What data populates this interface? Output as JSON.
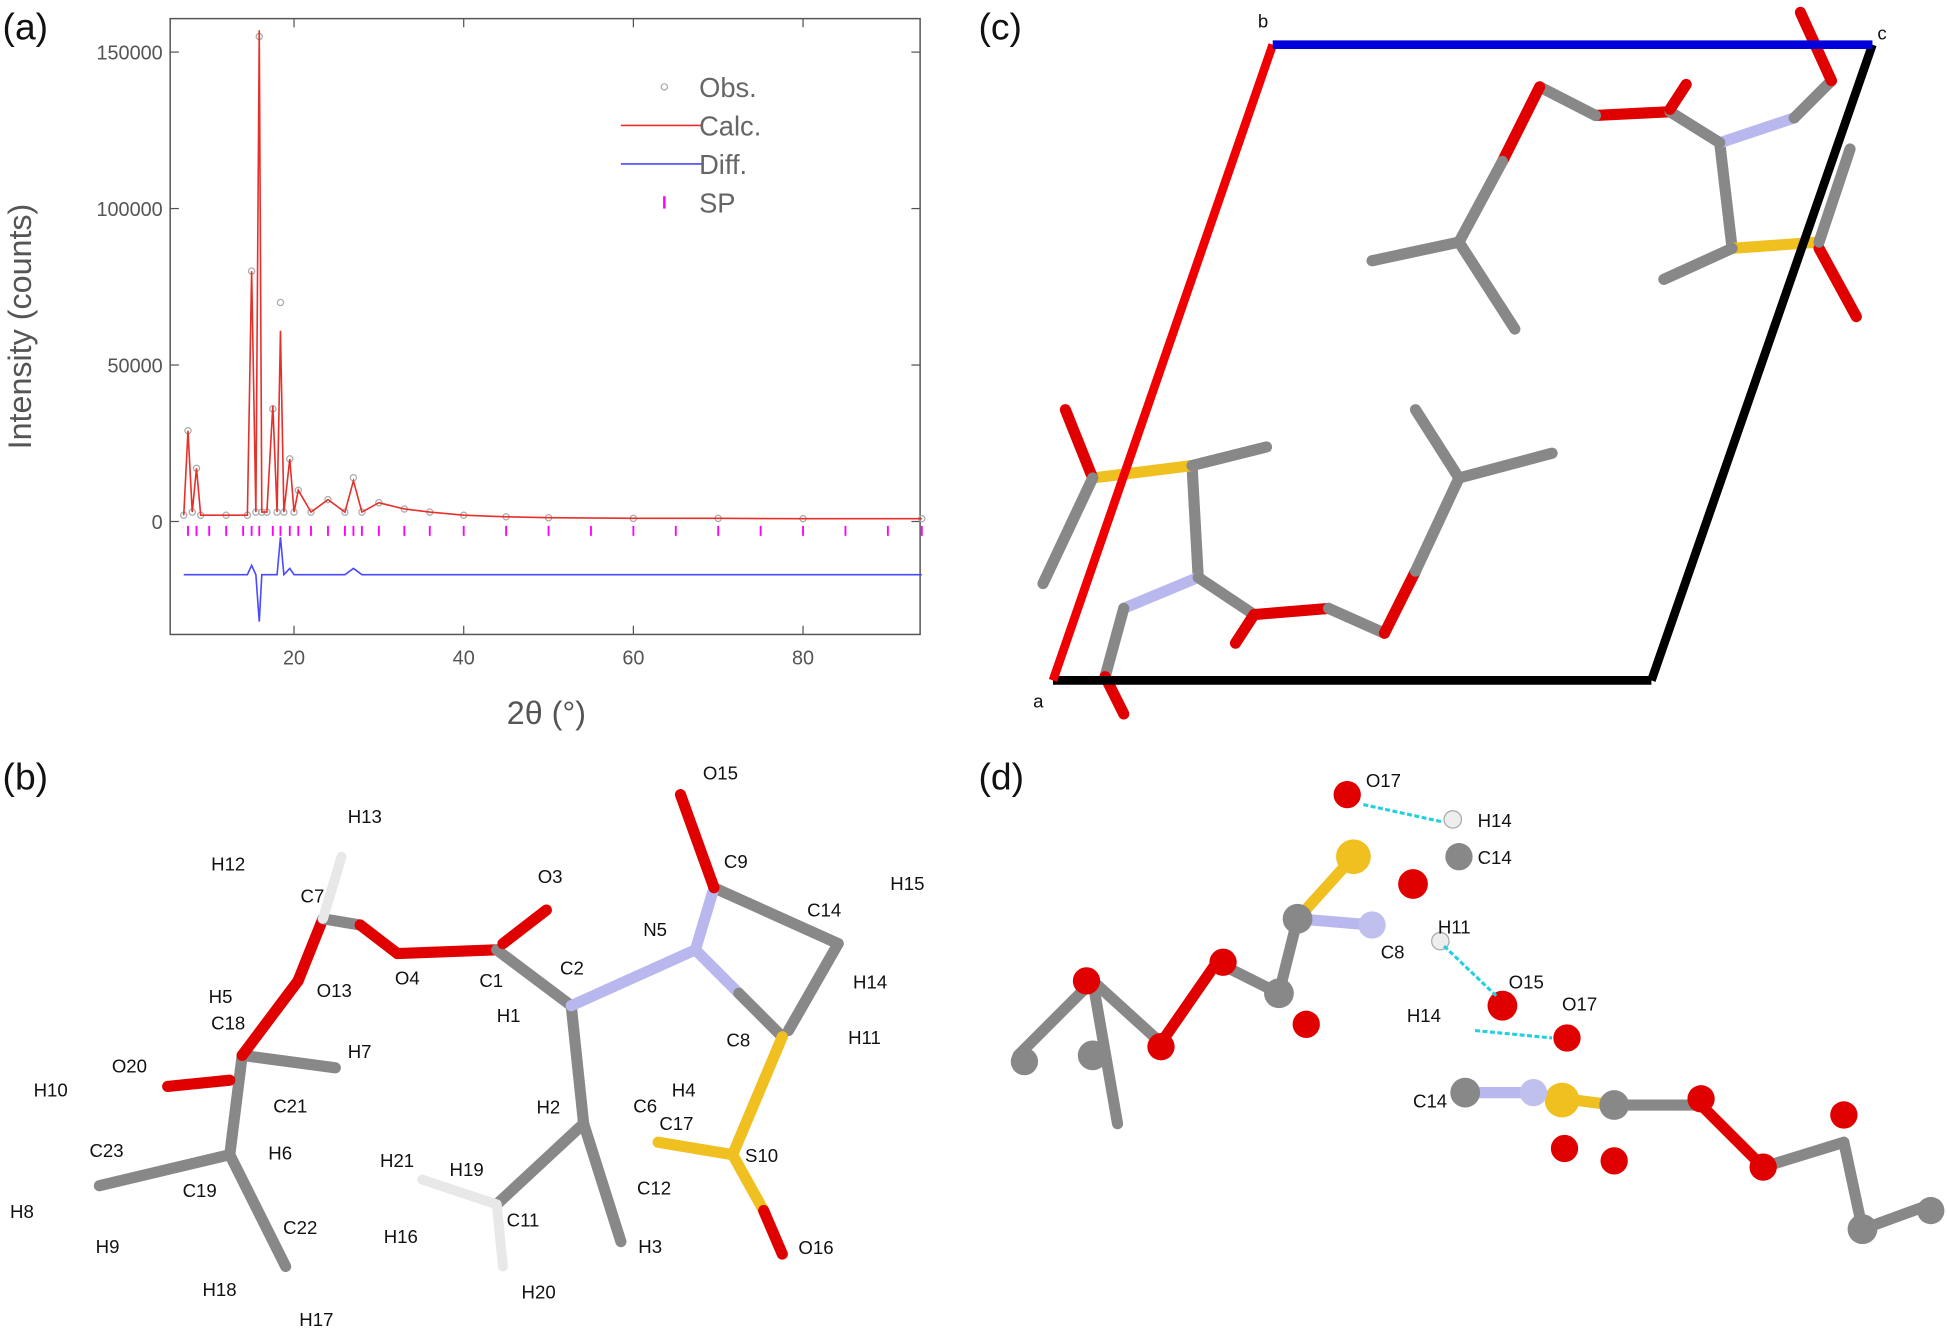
{
  "chart_data": {
    "type": "line",
    "panel_label": "(a)",
    "y_label": "Intensity (counts)",
    "x_label": "2θ (°)",
    "x": [
      7,
      7.5,
      8,
      8.5,
      9,
      12,
      14.5,
      15,
      15.5,
      15.9,
      16.2,
      16.8,
      17.5,
      18,
      18.4,
      18.8,
      19.5,
      20,
      20.5,
      22,
      24,
      26,
      27,
      28,
      30,
      33,
      36,
      40,
      45,
      50,
      60,
      70,
      80,
      94
    ],
    "series": [
      {
        "name": "Obs.",
        "color": "#aaaaaa",
        "values": [
          2000,
          29000,
          3000,
          17000,
          2000,
          2000,
          2000,
          80000,
          3000,
          155000,
          3000,
          3000,
          36000,
          3000,
          70000,
          3000,
          20000,
          3000,
          10000,
          3000,
          7000,
          3000,
          14000,
          3000,
          6000,
          4000,
          3000,
          2000,
          1500,
          1200,
          1000,
          1000,
          900,
          900
        ]
      },
      {
        "name": "Calc.",
        "color": "#e8302a",
        "values": [
          2000,
          29000,
          3000,
          17000,
          2000,
          2000,
          2000,
          80000,
          3000,
          157000,
          3000,
          3000,
          37000,
          3000,
          61000,
          3000,
          20000,
          3000,
          10000,
          3000,
          7000,
          3000,
          13000,
          3000,
          6000,
          4000,
          3000,
          2000,
          1500,
          1200,
          1000,
          1000,
          900,
          900
        ]
      },
      {
        "name": "Diff.",
        "color": "#4a4aff",
        "values": [
          -17000,
          -17000,
          -17000,
          -17000,
          -17000,
          -17000,
          -17000,
          -14000,
          -17000,
          -32000,
          -17000,
          -17000,
          -17000,
          -17000,
          -5000,
          -17000,
          -15000,
          -17000,
          -17000,
          -17000,
          -17000,
          -17000,
          -15000,
          -17000,
          -17000,
          -17000,
          -17000,
          -17000,
          -17000,
          -17000,
          -17000,
          -17000,
          -17000,
          -17000
        ]
      },
      {
        "name": "SP",
        "color": "#ff00ff",
        "x": [
          7.5,
          8.5,
          10,
          12,
          14,
          15,
          15.9,
          17.5,
          18.4,
          19.5,
          20.5,
          22,
          24,
          26,
          27,
          28,
          30,
          33,
          36,
          40,
          45,
          50,
          55,
          60,
          65,
          70,
          75,
          80,
          85,
          90,
          94
        ],
        "values": [
          -3000,
          -3000,
          -3000,
          -3000,
          -3000,
          -3000,
          -3000,
          -3000,
          -3000,
          -3000,
          -3000,
          -3000,
          -3000,
          -3000,
          -3000,
          -3000,
          -3000,
          -3000,
          -3000,
          -3000,
          -3000,
          -3000,
          -3000,
          -3000,
          -3000,
          -3000,
          -3000,
          -3000,
          -3000,
          -3000,
          -3000
        ]
      }
    ],
    "xlim": [
      5.4,
      93.8
    ],
    "xticks": [
      20,
      40,
      60,
      80
    ],
    "ylim": [
      -36100,
      160700
    ],
    "yticks": [
      0,
      50000,
      100000,
      150000
    ]
  },
  "panel_b": {
    "label": "(b)",
    "atoms": [
      "O15",
      "O3",
      "C9",
      "H13",
      "H12",
      "C7",
      "H15",
      "N5",
      "C14",
      "O4",
      "C1",
      "C2",
      "O13",
      "H5",
      "C18",
      "H1",
      "H14",
      "H11",
      "C8",
      "O20",
      "H7",
      "H10",
      "C21",
      "H4",
      "H2",
      "C6",
      "C17",
      "H6",
      "S10",
      "C23",
      "H21",
      "H19",
      "C19",
      "C12",
      "H8",
      "H9",
      "C11",
      "C22",
      "H16",
      "H3",
      "O16",
      "H18",
      "H20",
      "H17"
    ]
  },
  "panel_c": {
    "label": "(c)",
    "axes": [
      "a",
      "b",
      "c"
    ]
  },
  "panel_d": {
    "label": "(d)",
    "atoms": [
      "O17",
      "H14",
      "C14",
      "H11",
      "C8",
      "O15",
      "H14",
      "O17",
      "C14"
    ]
  }
}
